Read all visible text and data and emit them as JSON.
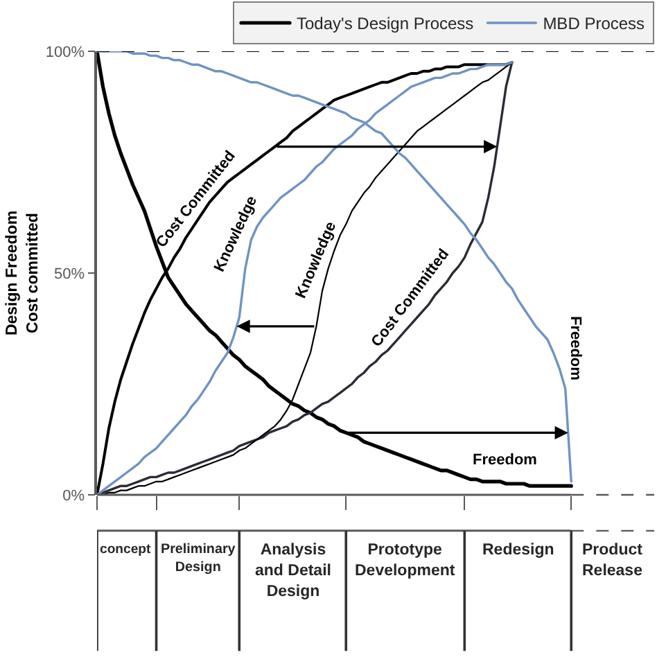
{
  "chart_data": {
    "type": "line",
    "categories": [
      null,
      null,
      null,
      null,
      null,
      "concept",
      null,
      null,
      null,
      null,
      null,
      null,
      null,
      null,
      null,
      null,
      null,
      "Preliminary Design",
      null,
      null,
      null,
      null,
      null,
      null,
      null,
      null,
      null,
      null,
      null,
      null,
      null,
      null,
      null,
      "Analysis and Detail Design",
      null,
      null,
      null,
      null,
      null,
      null,
      null,
      null,
      null,
      null,
      null,
      null,
      null,
      null,
      null,
      null,
      null,
      null,
      "Prototype Development",
      null,
      null,
      null,
      null,
      null,
      null,
      null,
      null,
      null,
      null,
      null,
      null,
      null,
      null,
      null,
      null,
      null,
      null,
      "Redesign",
      null,
      null,
      null,
      null,
      null,
      null,
      null,
      null,
      null,
      null,
      null,
      null,
      null,
      null,
      null,
      "Product Release",
      null,
      null,
      null,
      null,
      null,
      null,
      null
    ],
    "series": [
      {
        "name": "Today's Design Process",
        "color": "#000000",
        "values": [
          100,
          92,
          86,
          81,
          77,
          73.5,
          70,
          67,
          64,
          60,
          56,
          52.5,
          49,
          47,
          45,
          43,
          41.5,
          40,
          38.5,
          37,
          36,
          34.5,
          33,
          31.5,
          30.5,
          29,
          28,
          27,
          26,
          24.5,
          23.5,
          22.5,
          21.5,
          20.5,
          20,
          19,
          18.5,
          17.5,
          17,
          16,
          15.5,
          14.5,
          14,
          13.5,
          13,
          12,
          11.5,
          11,
          10.5,
          10,
          9.5,
          9,
          8.5,
          8,
          7.5,
          7,
          6.5,
          6,
          5.5,
          5.5,
          5,
          4.5,
          4,
          3.5,
          3.5,
          3,
          3,
          3,
          3,
          2.5,
          2.5,
          2.5,
          2.5,
          2,
          2,
          2,
          2,
          2,
          2,
          2,
          2,
          null,
          null,
          null,
          null,
          null,
          null,
          null,
          null,
          null,
          null,
          null,
          null,
          null,
          null
        ]
      },
      {
        "color": "#000000",
        "values": [
          0,
          7,
          15,
          21,
          26,
          30,
          34,
          37.5,
          41,
          44,
          46.5,
          49,
          51,
          53.5,
          55.5,
          58,
          60,
          62,
          64,
          66,
          67.5,
          69,
          70.5,
          71.5,
          72.5,
          73.5,
          74.5,
          75.5,
          76.5,
          77.5,
          78.5,
          79.5,
          80.5,
          82,
          83,
          84,
          85,
          86,
          87,
          88,
          89,
          89.5,
          90,
          90.5,
          91,
          91.5,
          92,
          92.5,
          93,
          93,
          93.5,
          94,
          94.5,
          95,
          95,
          95.5,
          95.5,
          96,
          96,
          96.5,
          96.5,
          96.5,
          97,
          97,
          97,
          97,
          97,
          97,
          97,
          97,
          97.5,
          null,
          null,
          null,
          null,
          null,
          null,
          null,
          null,
          null,
          null,
          null,
          null,
          null,
          null,
          null,
          null,
          null,
          null,
          null,
          null,
          null,
          null,
          null,
          null
        ]
      },
      {
        "color": "#2b2b36",
        "values": [
          0,
          0.5,
          1,
          1.5,
          2,
          2,
          2.5,
          3,
          3.5,
          4,
          4,
          4.5,
          5,
          5,
          5.5,
          6,
          6.5,
          7,
          7.5,
          8,
          8.5,
          9,
          9.5,
          10,
          11,
          11.5,
          12,
          12.5,
          13,
          14,
          14.5,
          15,
          15.5,
          16.5,
          17,
          18,
          18.5,
          19.5,
          20.5,
          21,
          22,
          23,
          24,
          25,
          26.5,
          27.5,
          29,
          30,
          31.5,
          32.5,
          34,
          35.5,
          37,
          38.5,
          40,
          41.5,
          43,
          45,
          46.5,
          48,
          50,
          51.5,
          53.5,
          56.5,
          59,
          61.5,
          67,
          74,
          83,
          92,
          97.5,
          null,
          null,
          null,
          null,
          null,
          null,
          null,
          null,
          null,
          null,
          null,
          null,
          null,
          null,
          null,
          null,
          null,
          null,
          null,
          null,
          null,
          null,
          null,
          null
        ]
      },
      {
        "color": "#000000",
        "values": [
          0,
          0,
          0.5,
          0.5,
          1,
          1,
          1.5,
          2,
          2,
          2.5,
          3,
          3,
          3.5,
          4,
          4.5,
          5,
          5.5,
          6,
          6.5,
          7,
          7.5,
          8,
          8.5,
          9,
          10,
          10.5,
          11.5,
          12.5,
          13.5,
          14.5,
          15.5,
          17,
          19,
          21.5,
          25,
          28.5,
          32,
          38,
          46,
          51,
          55,
          58.5,
          61,
          64,
          66,
          68,
          69.5,
          71.5,
          73,
          74.5,
          76,
          77.5,
          79,
          80.5,
          82,
          83,
          84,
          85,
          86,
          87,
          88,
          89,
          90,
          91,
          92,
          93,
          93.5,
          94.5,
          95.5,
          96.5,
          97.5,
          null,
          null,
          null,
          null,
          null,
          null,
          null,
          null,
          null,
          null,
          null,
          null,
          null,
          null,
          null,
          null,
          null,
          null,
          null,
          null,
          null,
          null,
          null,
          null
        ]
      },
      {
        "name": "MBD Process",
        "color": "#6f93c3",
        "values": [
          0,
          1,
          2,
          3,
          4,
          5,
          6,
          7,
          8.5,
          9.5,
          10.5,
          12,
          13.5,
          15,
          16.5,
          18,
          20,
          21.5,
          23.5,
          25.5,
          28,
          30,
          32,
          35.5,
          40,
          51,
          57.5,
          60.5,
          62.5,
          64,
          65.5,
          67,
          68,
          69,
          70,
          71,
          72.5,
          74,
          75,
          76.5,
          78,
          79,
          80,
          81,
          82.5,
          83.5,
          84.5,
          86,
          87,
          88,
          89,
          90,
          91,
          92,
          92.5,
          93,
          93.5,
          94,
          94,
          94.5,
          95,
          95,
          95.5,
          96,
          96,
          96.5,
          97,
          97,
          97,
          97,
          97.5,
          null,
          null,
          null,
          null,
          null,
          null,
          null,
          null,
          null,
          null,
          null,
          null,
          null,
          null,
          null,
          null,
          null,
          null,
          null,
          null,
          null,
          null,
          null,
          null
        ]
      },
      {
        "color": "#6f93c3",
        "values": [
          100,
          100,
          100,
          100,
          100,
          100,
          99.5,
          99.5,
          99.5,
          99,
          99,
          98.5,
          98.5,
          98,
          98,
          97.5,
          97,
          97,
          96.5,
          96,
          95.5,
          95.5,
          95,
          94.5,
          94,
          93.5,
          93,
          93,
          92.5,
          92,
          91.5,
          91,
          90.5,
          90,
          90,
          89.5,
          89,
          88.5,
          88,
          87.5,
          87,
          86.5,
          86,
          85,
          84.5,
          84,
          83,
          82,
          81.5,
          80,
          78.5,
          77,
          76,
          74.5,
          73,
          71.5,
          70,
          68.5,
          67,
          65.5,
          64,
          62.5,
          61,
          59,
          57.5,
          55.5,
          53.5,
          52,
          50,
          48,
          46.5,
          44,
          42,
          40,
          38,
          36.5,
          35,
          32,
          28.5,
          24,
          3,
          null,
          null,
          null,
          null,
          null,
          null,
          null,
          null,
          null,
          null,
          null,
          null,
          null,
          null
        ]
      }
    ],
    "ylabel": "Design Freedom\nCost committed",
    "ylim": [
      0,
      100
    ],
    "yticks": [
      {
        "value": 0,
        "label": "0%"
      },
      {
        "value": 50,
        "label": "50%"
      },
      {
        "value": 100,
        "label": "100%"
      }
    ],
    "annotations": [
      "Cost Committed",
      "Knowledge",
      {
        "text": "Knowledge",
        "y": 38
      },
      "Cost Committed",
      "Freedom",
      "Freedom"
    ],
    "ref_lines": [
      {
        "axis": "y",
        "value": 100,
        "line_style": "dashed",
        "color": "#000000"
      }
    ],
    "legend": "top right"
  }
}
